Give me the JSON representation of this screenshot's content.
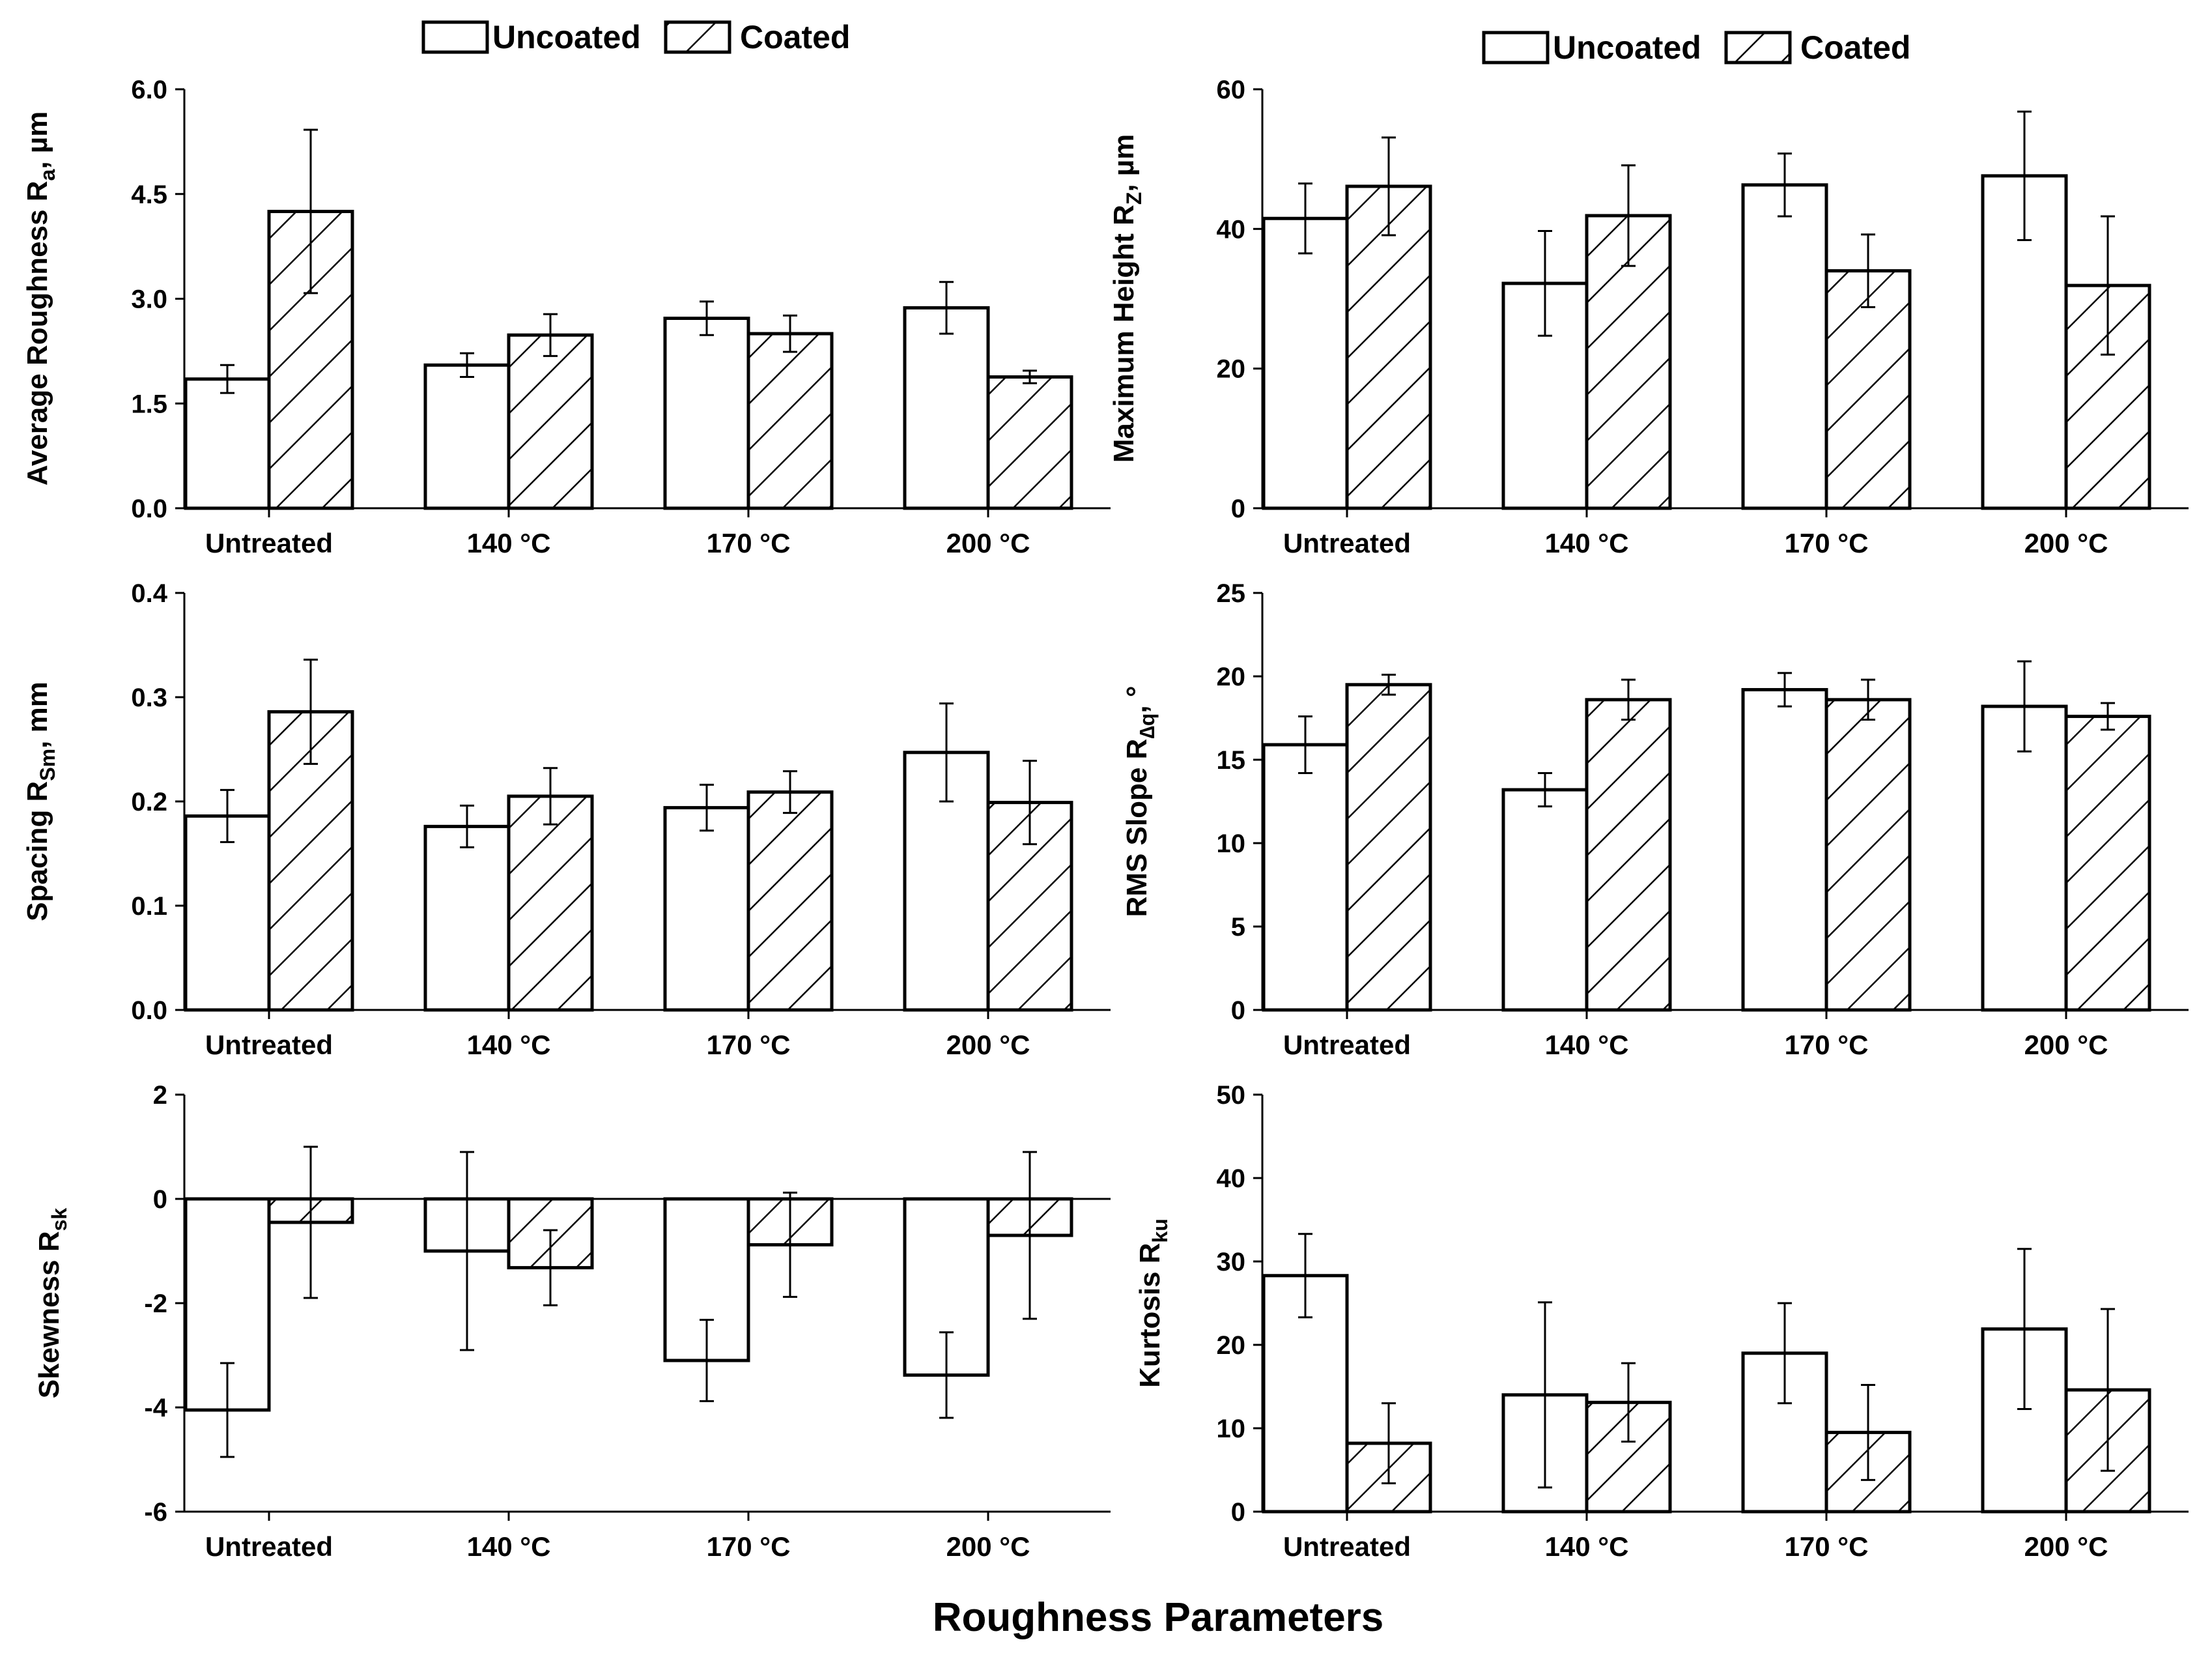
{
  "legend": {
    "uncoated": "Uncoated",
    "coated": "Coated"
  },
  "x_title": "Roughness Parameters",
  "chart_data": [
    {
      "id": "ra",
      "type": "bar",
      "ylabel_main": "Average Roughness R",
      "ylabel_sub": "a",
      "ylabel_tail": ", µm",
      "ylim": [
        0,
        6
      ],
      "ticks": [
        0,
        1.5,
        3,
        4.5,
        6
      ],
      "tick_labels": [
        "0.0",
        "1.5",
        "3.0",
        "4.5",
        "6.0"
      ],
      "categories": [
        "Untreated",
        "140 °C",
        "170 °C",
        "200 °C"
      ],
      "series": [
        {
          "name": "Uncoated",
          "values": [
            1.85,
            2.05,
            2.72,
            2.87
          ],
          "errors": [
            0.2,
            0.17,
            0.24,
            0.37
          ]
        },
        {
          "name": "Coated",
          "values": [
            4.25,
            2.48,
            2.5,
            1.88
          ],
          "errors": [
            1.17,
            0.3,
            0.26,
            0.09
          ]
        }
      ]
    },
    {
      "id": "rz",
      "type": "bar",
      "ylabel_main": "Maximum Height R",
      "ylabel_sub": "Z",
      "ylabel_tail": ", µm",
      "ylim": [
        0,
        60
      ],
      "ticks": [
        0,
        20,
        40,
        60
      ],
      "tick_labels": [
        "0",
        "20",
        "40",
        "60"
      ],
      "categories": [
        "Untreated",
        "140 °C",
        "170 °C",
        "200 °C"
      ],
      "series": [
        {
          "name": "Uncoated",
          "values": [
            41.5,
            32.2,
            46.3,
            47.6
          ],
          "errors": [
            5,
            7.5,
            4.5,
            9.2
          ]
        },
        {
          "name": "Coated",
          "values": [
            46.1,
            41.9,
            34,
            31.9
          ],
          "errors": [
            7,
            7.2,
            5.2,
            9.9
          ]
        }
      ]
    },
    {
      "id": "rsm",
      "type": "bar",
      "ylabel_main": "Spacing R",
      "ylabel_sub": "Sm",
      "ylabel_tail": ", mm",
      "ylim": [
        0,
        0.4
      ],
      "ticks": [
        0,
        0.1,
        0.2,
        0.3,
        0.4
      ],
      "tick_labels": [
        "0.0",
        "0.1",
        "0.2",
        "0.3",
        "0.4"
      ],
      "categories": [
        "Untreated",
        "140 °C",
        "170 °C",
        "200 °C"
      ],
      "series": [
        {
          "name": "Uncoated",
          "values": [
            0.186,
            0.176,
            0.194,
            0.247
          ],
          "errors": [
            0.025,
            0.02,
            0.022,
            0.047
          ]
        },
        {
          "name": "Coated",
          "values": [
            0.286,
            0.205,
            0.209,
            0.199
          ],
          "errors": [
            0.05,
            0.027,
            0.02,
            0.04
          ]
        }
      ]
    },
    {
      "id": "rdq",
      "type": "bar",
      "ylabel_main": "RMS Slope R",
      "ylabel_sub": "∆q",
      "ylabel_tail": ", °",
      "ylim": [
        0,
        25
      ],
      "ticks": [
        0,
        5,
        10,
        15,
        20,
        25
      ],
      "tick_labels": [
        "0",
        "5",
        "10",
        "15",
        "20",
        "25"
      ],
      "categories": [
        "Untreated",
        "140 °C",
        "170 °C",
        "200 °C"
      ],
      "series": [
        {
          "name": "Uncoated",
          "values": [
            15.9,
            13.2,
            19.2,
            18.2
          ],
          "errors": [
            1.7,
            1.0,
            1.0,
            2.7
          ]
        },
        {
          "name": "Coated",
          "values": [
            19.5,
            18.6,
            18.6,
            17.6
          ],
          "errors": [
            0.6,
            1.2,
            1.2,
            0.8
          ]
        }
      ]
    },
    {
      "id": "rsk",
      "type": "bar",
      "ylabel_main": "Skewness R",
      "ylabel_sub": "sk",
      "ylabel_tail": "",
      "ylim": [
        -6,
        2
      ],
      "ticks": [
        -6,
        -4,
        -2,
        0,
        2
      ],
      "tick_labels": [
        "-6",
        "-4",
        "-2",
        "0",
        "2"
      ],
      "categories": [
        "Untreated",
        "140 °C",
        "170 °C",
        "200 °C"
      ],
      "series": [
        {
          "name": "Uncoated",
          "values": [
            -4.05,
            -1.0,
            -3.1,
            -3.38
          ],
          "errors": [
            0.9,
            1.9,
            0.78,
            0.82
          ]
        },
        {
          "name": "Coated",
          "values": [
            -0.45,
            -1.32,
            -0.88,
            -0.7
          ],
          "errors": [
            1.45,
            0.72,
            1.0,
            1.6
          ]
        }
      ]
    },
    {
      "id": "rku",
      "type": "bar",
      "ylabel_main": "Kurtosis R",
      "ylabel_sub": "ku",
      "ylabel_tail": "",
      "ylim": [
        0,
        50
      ],
      "ticks": [
        0,
        10,
        20,
        30,
        40,
        50
      ],
      "tick_labels": [
        "0",
        "10",
        "20",
        "30",
        "40",
        "50"
      ],
      "categories": [
        "Untreated",
        "140 °C",
        "170 °C",
        "200 °C"
      ],
      "series": [
        {
          "name": "Uncoated",
          "values": [
            28.3,
            14,
            19,
            21.9
          ],
          "errors": [
            5,
            11.1,
            6,
            9.6
          ]
        },
        {
          "name": "Coated",
          "values": [
            8.2,
            13.1,
            9.5,
            14.6
          ],
          "errors": [
            4.8,
            4.7,
            5.7,
            9.7
          ]
        }
      ]
    }
  ]
}
